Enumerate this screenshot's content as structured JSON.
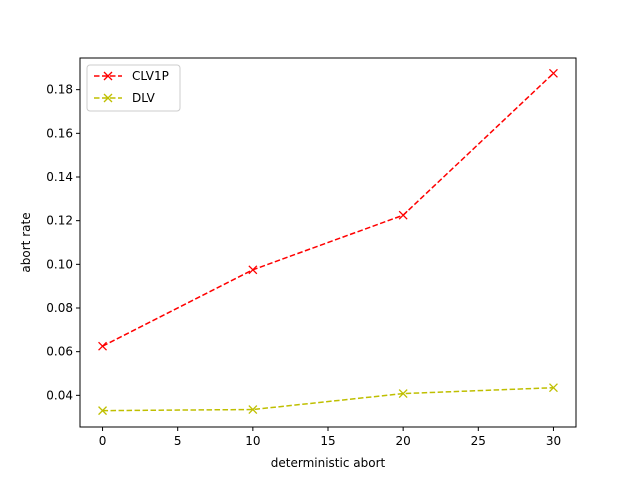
{
  "chart_data": {
    "type": "line",
    "xlabel": "deterministic abort",
    "ylabel": "abort rate",
    "xlim": [
      -1.5,
      31.5
    ],
    "ylim": [
      0.0255,
      0.1945
    ],
    "xticks": [
      0,
      5,
      10,
      15,
      20,
      25,
      30
    ],
    "yticks": [
      0.04,
      0.06,
      0.08,
      0.1,
      0.12,
      0.14,
      0.16,
      0.18
    ],
    "ytick_labels": [
      "0.04",
      "0.06",
      "0.08",
      "0.10",
      "0.12",
      "0.14",
      "0.16",
      "0.18"
    ],
    "grid": false,
    "legend": "top-left",
    "series": [
      {
        "name": "CLV1P",
        "color": "#ff0000",
        "marker": "x",
        "linestyle": "dashed",
        "x": [
          0,
          10,
          20,
          30
        ],
        "y": [
          0.0625,
          0.0975,
          0.1225,
          0.1875
        ]
      },
      {
        "name": "DLV",
        "color": "#bfbf00",
        "marker": "x",
        "linestyle": "dashed",
        "x": [
          0,
          10,
          20,
          30
        ],
        "y": [
          0.033,
          0.0335,
          0.0408,
          0.0435
        ]
      }
    ]
  }
}
